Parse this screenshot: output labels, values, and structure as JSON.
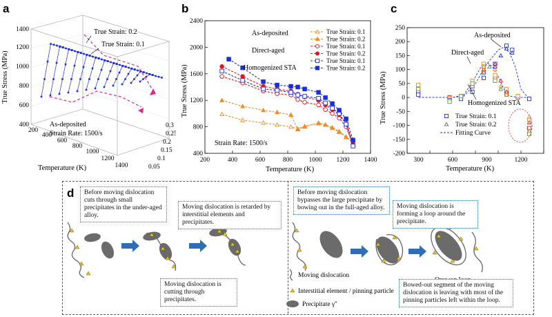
{
  "panels": {
    "a": {
      "label": "a",
      "zlabel": "True Stress (MPa)",
      "xlabel": "Temperature (K)",
      "ylabel_right": "",
      "z_ticks": [
        "400",
        "600",
        "800",
        "1000",
        "1200",
        "1400"
      ],
      "x_ticks": [
        "200",
        "400",
        "600",
        "800",
        "1000",
        "1200",
        "1400"
      ],
      "y_ticks": [
        "0.05",
        "0.1",
        "0.15",
        "0.2",
        "0.25",
        "0.3"
      ],
      "ann1": "True Strain: 0.2",
      "ann2": "True Strain: 0.1",
      "ann3": "As-deposited",
      "ann4": "Strain Rate: 1500/s"
    },
    "b": {
      "label": "b",
      "ylabel": "True Stress (MPa)",
      "xlabel": "Temperature (K)",
      "note": "Strain Rate: 1500/s",
      "group_labels": [
        "As-deposited",
        "Direct-aged",
        "Homogenized STA"
      ],
      "legend": [
        "True Strain: 0.1",
        "True Strain: 0.2",
        "True Strain: 0.1",
        "True Strain: 0.2",
        "True Strain: 0.1",
        "True Strain: 0.2"
      ]
    },
    "c": {
      "label": "c",
      "ylabel": "True Stress (MPa)",
      "xlabel": "Temperature (K)",
      "ann_asdep": "As-deposited",
      "ann_direct": "Direct-aged",
      "ann_homog": "Homogenized STA",
      "legend": [
        "True Strain: 0.1",
        "True Strain: 0.2",
        "Fitting Curve"
      ]
    },
    "d": {
      "label": "d",
      "callout1": "Before moving dislocation cuts through small precipitates in the under-aged alloy.",
      "callout2": "Moving dislocation is retarded by interstitial elements and precipitates.",
      "callout3": "Moving dislocation is cutting through precipitates.",
      "callout4": "Before moving dislocation bypasses the large precipitate by bowing out in the full-aged alloy.",
      "callout5": "Moving dislocation is forming a loop around the precipitate.",
      "callout6": "Bowed-out segment of the moving dislocation is leaving with most of the pinning particles left within the loop.",
      "orowan": "Orowan loop",
      "leg1": "Moving dislocation",
      "leg2": "Interstitial element / pinning particle",
      "leg3": "Precipitate γ''"
    }
  },
  "colors": {
    "orange": "#f28a1e",
    "red": "#e8141b",
    "blue": "#1a2fd6",
    "green": "#5a9a3a",
    "gray": "#6b6b6b"
  },
  "chart_data": [
    {
      "type": "line",
      "id": "b",
      "x_unit": "K",
      "xlim": [
        200,
        1400
      ],
      "ylim": [
        400,
        2400
      ],
      "series": [
        {
          "name": "As-deposited True Strain: 0.1",
          "color": "#f28a1e",
          "dash": true,
          "filled": false,
          "marker": "triangle",
          "x": [
            323,
            473,
            623,
            723,
            823,
            873,
            923,
            1023,
            1073,
            1123,
            1173,
            1223,
            1273
          ],
          "y": [
            990,
            900,
            860,
            830,
            800,
            770,
            810,
            850,
            830,
            780,
            720,
            640,
            560
          ]
        },
        {
          "name": "As-deposited True Strain: 0.2",
          "color": "#f28a1e",
          "dash": true,
          "filled": true,
          "marker": "triangle",
          "x": [
            323,
            473,
            623,
            723,
            823,
            873,
            923,
            1023,
            1073,
            1123,
            1173,
            1223,
            1273
          ],
          "y": [
            1200,
            1110,
            1050,
            1020,
            980,
            760,
            800,
            860,
            830,
            790,
            730,
            650,
            570
          ]
        },
        {
          "name": "Direct-aged True Strain: 0.1",
          "color": "#e8141b",
          "dash": true,
          "filled": false,
          "marker": "circle",
          "x": [
            323,
            473,
            623,
            723,
            823,
            873,
            923,
            1023,
            1073,
            1123,
            1173,
            1223,
            1273
          ],
          "y": [
            1560,
            1460,
            1340,
            1300,
            1280,
            1210,
            1170,
            1130,
            1060,
            1000,
            930,
            800,
            530
          ]
        },
        {
          "name": "Direct-aged True Strain: 0.2",
          "color": "#e8141b",
          "dash": true,
          "filled": true,
          "marker": "circle",
          "x": [
            323,
            473,
            623,
            723,
            823,
            873,
            923,
            1023,
            1073,
            1123,
            1173,
            1223,
            1273
          ],
          "y": [
            1710,
            1560,
            1410,
            1370,
            1340,
            1290,
            1250,
            1200,
            1130,
            1060,
            980,
            850,
            570
          ]
        },
        {
          "name": "Homogenized STA True Strain: 0.1",
          "color": "#1a2fd6",
          "dash": true,
          "filled": false,
          "marker": "square",
          "x": [
            323,
            473,
            623,
            723,
            823,
            873,
            923,
            1023,
            1073,
            1123,
            1173,
            1223,
            1273
          ],
          "y": [
            1640,
            1500,
            1370,
            1350,
            1320,
            1280,
            1260,
            1230,
            1160,
            1080,
            1000,
            840,
            510
          ]
        },
        {
          "name": "Homogenized STA True Strain: 0.2",
          "color": "#1a2fd6",
          "dash": true,
          "filled": true,
          "marker": "square",
          "x": [
            373,
            473,
            623,
            723,
            823,
            873,
            923,
            1023,
            1073,
            1123,
            1173,
            1223,
            1273
          ],
          "y": [
            1820,
            1690,
            1480,
            1430,
            1410,
            1400,
            1370,
            1320,
            1240,
            1150,
            1050,
            920,
            600
          ]
        }
      ]
    },
    {
      "type": "scatter",
      "id": "c",
      "xlim": [
        200,
        1400
      ],
      "ylim": [
        -200,
        250
      ],
      "series": [
        {
          "name": "True Strain: 0.1",
          "marker": "square",
          "groups": [
            {
              "color": "#e8141b",
              "x": [
                298,
                573,
                673,
                773,
                873,
                973,
                1073,
                1173,
                1273
              ],
              "y": [
                20,
                0,
                5,
                40,
                90,
                70,
                20,
                0,
                -110
              ]
            },
            {
              "color": "#f28a1e",
              "x": [
                298,
                573,
                673,
                773,
                873,
                973,
                1073,
                1173,
                1273
              ],
              "y": [
                45,
                -5,
                0,
                60,
                120,
                80,
                30,
                5,
                -80
              ]
            },
            {
              "color": "#1a2fd6",
              "x": [
                298,
                573,
                673,
                773,
                873,
                973,
                1073,
                1123,
                1273
              ],
              "y": [
                10,
                -10,
                -5,
                20,
                70,
                120,
                185,
                170,
                -5
              ]
            },
            {
              "color": "#5a9a3a",
              "x": [
                298,
                573,
                673,
                773,
                873,
                973,
                1073,
                1273
              ],
              "y": [
                30,
                -15,
                5,
                50,
                110,
                60,
                10,
                -130
              ]
            }
          ]
        },
        {
          "name": "True Strain: 0.2",
          "marker": "triangle",
          "groups": [
            {
              "color": "#e8141b",
              "x": [
                873,
                973,
                1023,
                1073,
                1273
              ],
              "y": [
                100,
                120,
                60,
                20,
                -90
              ]
            },
            {
              "color": "#f28a1e",
              "x": [
                873,
                973,
                1023,
                1073,
                1273
              ],
              "y": [
                110,
                100,
                40,
                10,
                -70
              ]
            },
            {
              "color": "#1a2fd6",
              "x": [
                973,
                1023,
                1073,
                1123
              ],
              "y": [
                110,
                150,
                175,
                160
              ]
            },
            {
              "color": "#5a9a3a",
              "x": [
                873,
                923,
                1023,
                1273
              ],
              "y": [
                90,
                110,
                30,
                -120
              ]
            }
          ]
        },
        {
          "name": "Fitting Curve",
          "type": "line",
          "dash": true,
          "color": "#1a2fd6",
          "curves": [
            {
              "x": [
                300,
                600,
                700,
                800,
                900,
                1000,
                1050,
                1100,
                1150,
                1200,
                1280
              ],
              "y": [
                0,
                0,
                5,
                50,
                120,
                170,
                180,
                160,
                110,
                30,
                -10
              ]
            },
            {
              "x": [
                300,
                600,
                700,
                780,
                850,
                900,
                950,
                1000,
                1050,
                1100,
                1180,
                1280
              ],
              "y": [
                0,
                0,
                10,
                60,
                110,
                125,
                110,
                75,
                30,
                5,
                0,
                0
              ]
            }
          ]
        }
      ]
    }
  ]
}
